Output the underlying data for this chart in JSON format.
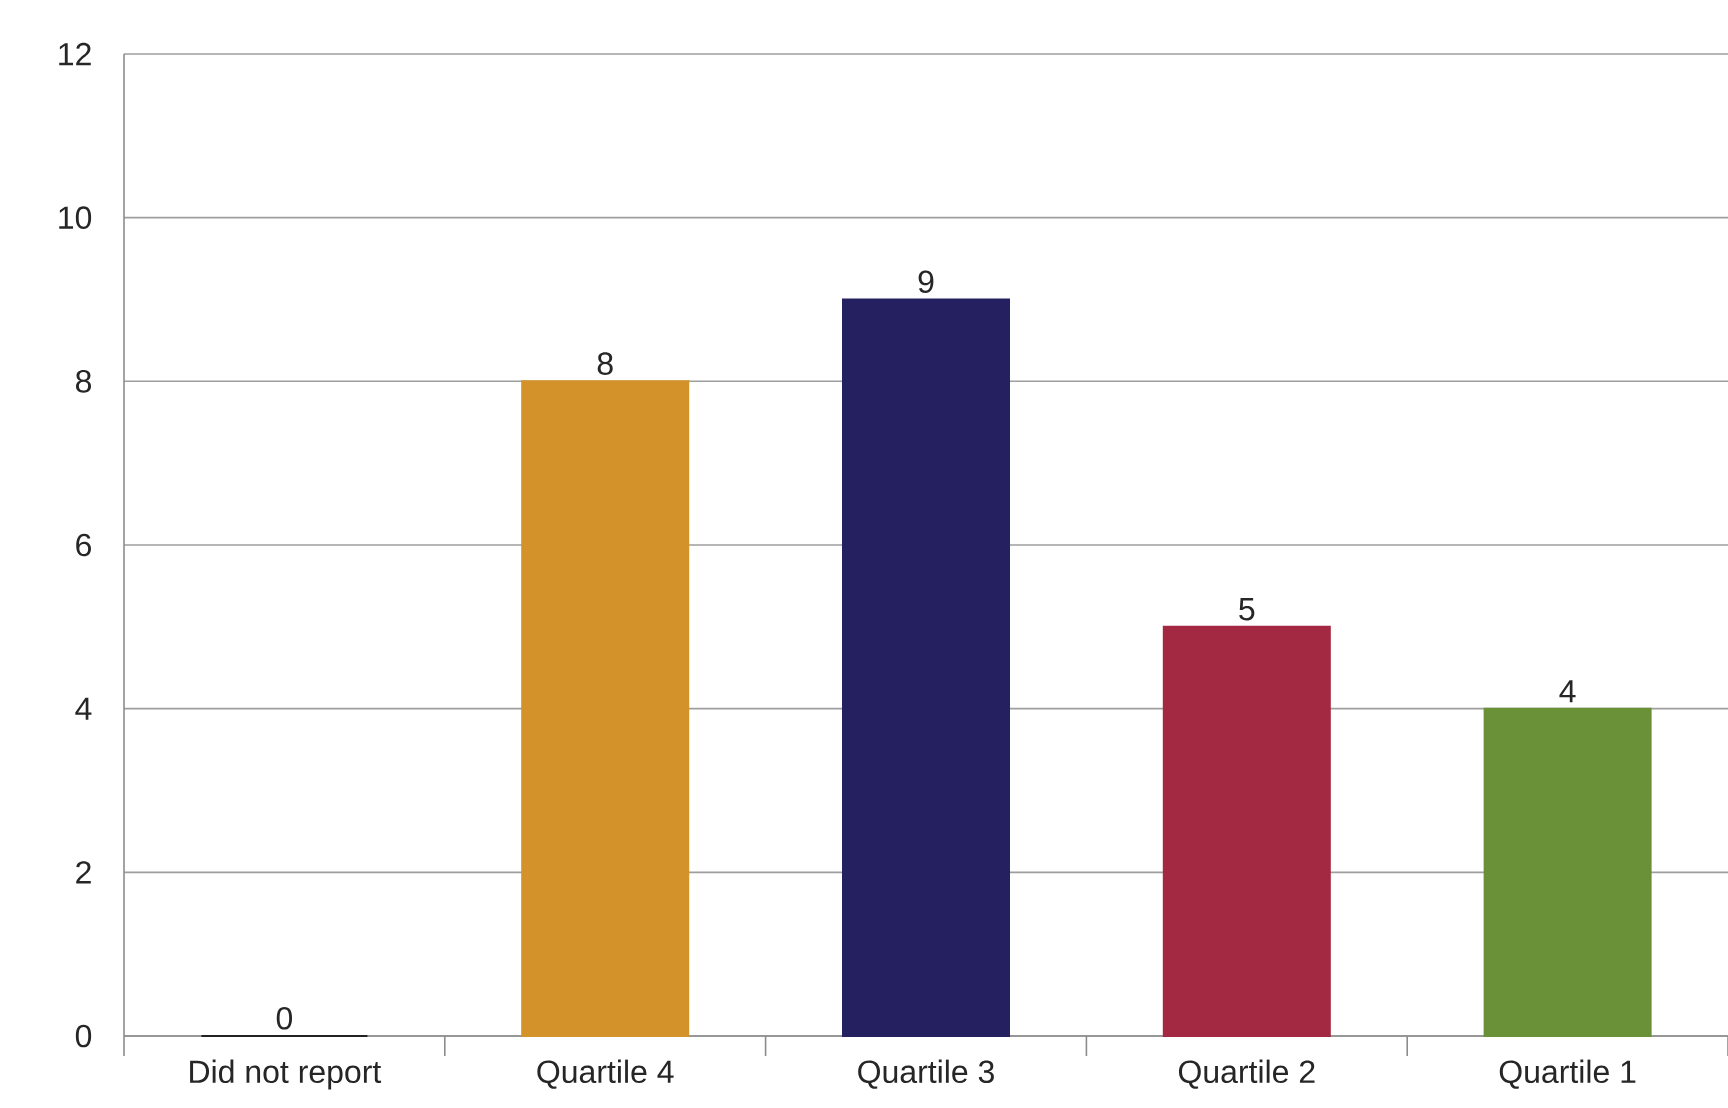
{
  "chart_data": {
    "type": "bar",
    "categories": [
      "Did not report",
      "Quartile 4",
      "Quartile 3",
      "Quartile 2",
      "Quartile 1"
    ],
    "values": [
      0,
      8,
      9,
      5,
      4
    ],
    "colors": [
      "#222222",
      "#d3922a",
      "#252060",
      "#a32942",
      "#6b9138"
    ],
    "ylim": [
      0,
      12
    ],
    "yticks": [
      0,
      2,
      4,
      6,
      8,
      10,
      12
    ],
    "grid": "y",
    "data_labels": true
  }
}
